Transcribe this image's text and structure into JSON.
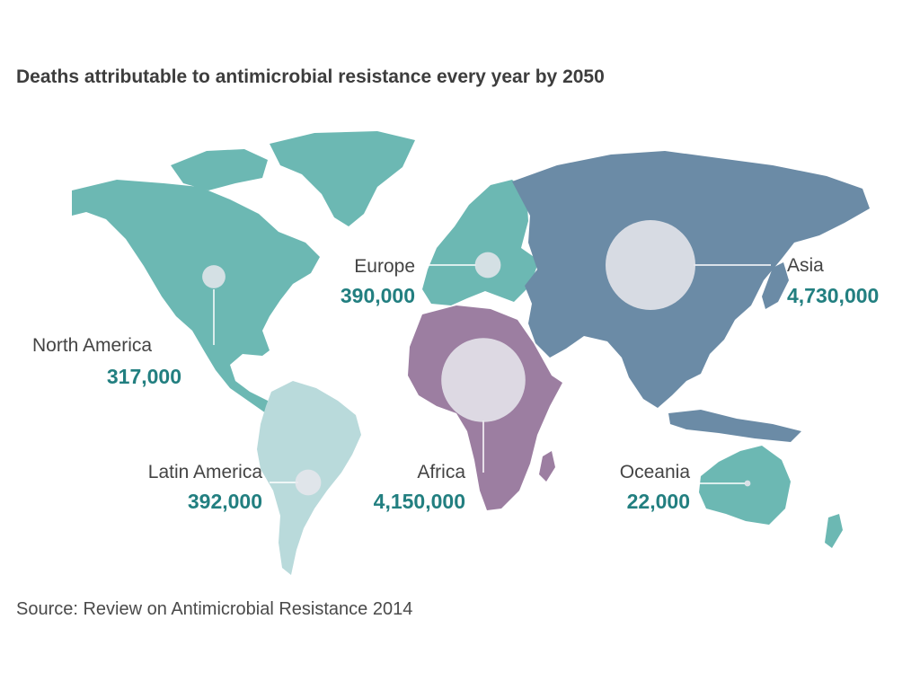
{
  "title": "Deaths attributable to antimicrobial resistance every year by 2050",
  "source": "Source: Review on Antimicrobial Resistance 2014",
  "colors": {
    "americas_europe_oceania": "#6cb8b3",
    "latin_america": "#b9dadb",
    "asia": "#6b8ba6",
    "africa": "#9c7ea1",
    "bubble": "#e6e6ec",
    "value_text": "#227f80"
  },
  "regions": [
    {
      "name": "North America",
      "value": "317,000",
      "deaths": 317000
    },
    {
      "name": "Europe",
      "value": "390,000",
      "deaths": 390000
    },
    {
      "name": "Asia",
      "value": "4,730,000",
      "deaths": 4730000
    },
    {
      "name": "Africa",
      "value": "4,150,000",
      "deaths": 4150000
    },
    {
      "name": "Latin America",
      "value": "392,000",
      "deaths": 392000
    },
    {
      "name": "Oceania",
      "value": "22,000",
      "deaths": 22000
    }
  ]
}
